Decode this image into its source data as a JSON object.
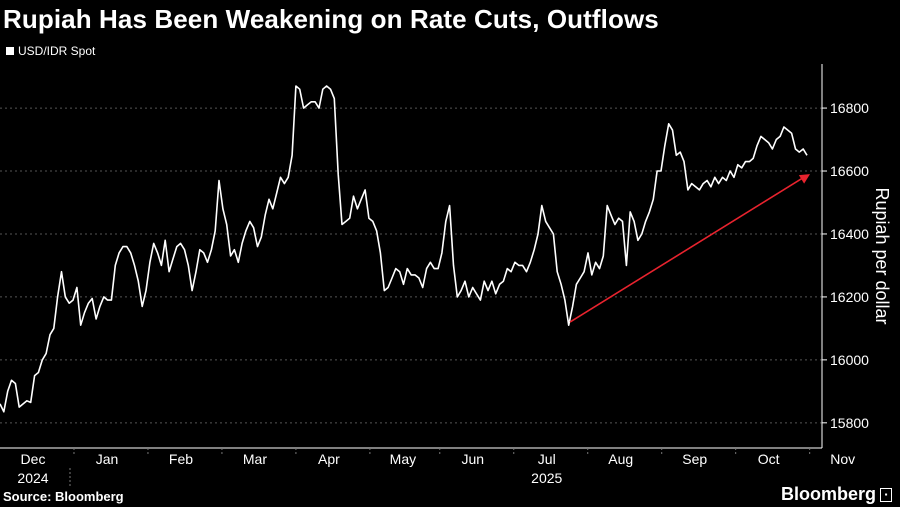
{
  "title": "Rupiah Has Been Weakening on Rate Cuts, Outflows",
  "legend": {
    "label": "USD/IDR Spot"
  },
  "source": "Source: Bloomberg",
  "brand": "Bloomberg",
  "colors": {
    "background": "#000000",
    "line": "#ffffff",
    "grid": "#555555",
    "arrow": "#e8232e"
  },
  "chart_data": {
    "type": "line",
    "title": "Rupiah Has Been Weakening on Rate Cuts, Outflows",
    "series": [
      {
        "name": "USD/IDR Spot",
        "values": [
          15860,
          15835,
          15900,
          15935,
          15925,
          15850,
          15860,
          15870,
          15865,
          15950,
          15960,
          16000,
          16020,
          16080,
          16100,
          16200,
          16280,
          16200,
          16180,
          16190,
          16230,
          16110,
          16150,
          16180,
          16195,
          16130,
          16170,
          16200,
          16190,
          16190,
          16300,
          16340,
          16360,
          16360,
          16340,
          16300,
          16250,
          16170,
          16220,
          16310,
          16370,
          16340,
          16300,
          16380,
          16280,
          16320,
          16360,
          16370,
          16350,
          16300,
          16220,
          16280,
          16350,
          16340,
          16310,
          16350,
          16410,
          16570,
          16480,
          16430,
          16330,
          16350,
          16310,
          16370,
          16410,
          16440,
          16420,
          16360,
          16390,
          16460,
          16510,
          16480,
          16530,
          16580,
          16560,
          16580,
          16650,
          16870,
          16860,
          16800,
          16810,
          16820,
          16820,
          16800,
          16860,
          16870,
          16860,
          16830,
          16590,
          16430,
          16440,
          16450,
          16520,
          16480,
          16510,
          16540,
          16450,
          16440,
          16410,
          16340,
          16220,
          16230,
          16260,
          16290,
          16280,
          16240,
          16290,
          16270,
          16270,
          16260,
          16230,
          16290,
          16310,
          16290,
          16290,
          16340,
          16440,
          16490,
          16300,
          16200,
          16220,
          16250,
          16200,
          16230,
          16210,
          16190,
          16250,
          16220,
          16250,
          16210,
          16240,
          16250,
          16290,
          16280,
          16310,
          16300,
          16300,
          16280,
          16310,
          16350,
          16400,
          16490,
          16440,
          16420,
          16400,
          16280,
          16240,
          16190,
          16110,
          16170,
          16240,
          16260,
          16280,
          16340,
          16270,
          16310,
          16290,
          16330,
          16490,
          16460,
          16430,
          16450,
          16440,
          16300,
          16470,
          16440,
          16380,
          16400,
          16440,
          16470,
          16510,
          16600,
          16600,
          16680,
          16750,
          16730,
          16650,
          16660,
          16630,
          16540,
          16560,
          16550,
          16540,
          16560,
          16570,
          16550,
          16580,
          16560,
          16580,
          16570,
          16600,
          16580,
          16620,
          16610,
          16630,
          16630,
          16640,
          16680,
          16710,
          16700,
          16690,
          16670,
          16700,
          16710,
          16740,
          16730,
          16720,
          16670,
          16660,
          16670,
          16650
        ]
      }
    ],
    "x_tick_labels": [
      "Dec",
      "Jan",
      "Feb",
      "Mar",
      "Apr",
      "May",
      "Jun",
      "Jul",
      "Aug",
      "Sep",
      "Oct",
      "Nov"
    ],
    "x_tick_positions": [
      0.0,
      0.09,
      0.18,
      0.27,
      0.36,
      0.45,
      0.535,
      0.625,
      0.715,
      0.805,
      0.895,
      0.985
    ],
    "x_sub_labels": {
      "Dec": "2024",
      "Jul": "2025"
    },
    "yticks": [
      15800,
      16000,
      16200,
      16400,
      16600,
      16800
    ],
    "ylim": [
      15720,
      16940
    ],
    "ylabel": "Rupiah per dollar",
    "xlabel": "",
    "annotation": {
      "type": "arrow",
      "from": [
        0.69,
        16120
      ],
      "to": [
        1.0,
        16590
      ]
    },
    "legend_position": "top-left",
    "grid": true
  }
}
